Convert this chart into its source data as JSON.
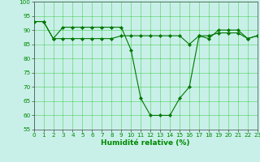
{
  "xlabel": "Humidité relative (%)",
  "background_color": "#c8f0e8",
  "grid_color": "#00bb00",
  "line_color": "#007700",
  "marker_color": "#007700",
  "x_values": [
    0,
    1,
    2,
    3,
    4,
    5,
    6,
    7,
    8,
    9,
    10,
    11,
    12,
    13,
    14,
    15,
    16,
    17,
    18,
    19,
    20,
    21,
    22,
    23
  ],
  "series1": [
    93,
    93,
    87,
    91,
    91,
    91,
    91,
    91,
    91,
    91,
    83,
    66,
    60,
    60,
    60,
    66,
    70,
    88,
    87,
    90,
    90,
    90,
    87,
    88
  ],
  "series2": [
    93,
    93,
    87,
    87,
    87,
    87,
    87,
    87,
    87,
    88,
    88,
    88,
    88,
    88,
    88,
    88,
    85,
    88,
    88,
    89,
    89,
    89,
    87,
    88
  ],
  "ylim": [
    55,
    100
  ],
  "yticks": [
    55,
    60,
    65,
    70,
    75,
    80,
    85,
    90,
    95,
    100
  ],
  "xlim": [
    0,
    23
  ],
  "xticks": [
    0,
    1,
    2,
    3,
    4,
    5,
    6,
    7,
    8,
    9,
    10,
    11,
    12,
    13,
    14,
    15,
    16,
    17,
    18,
    19,
    20,
    21,
    22,
    23
  ],
  "tick_fontsize": 5.2,
  "label_fontsize": 6.5,
  "linewidth": 0.8,
  "markersize": 2.2
}
